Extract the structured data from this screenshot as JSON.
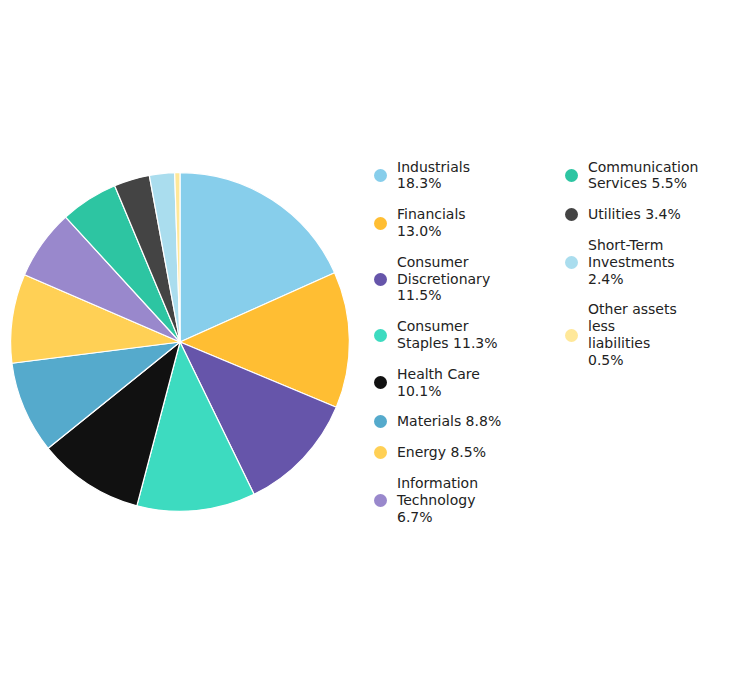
{
  "chart_data": {
    "type": "pie",
    "categories": [
      "Industrials\n18.3%",
      "Financials\n13.0%",
      "Consumer\nDiscretionary\n11.5%",
      "Consumer\nStaples 11.3%",
      "Health Care\n10.1%",
      "Materials 8.8%",
      "Energy 8.5%",
      "Information\nTechnology\n6.7%",
      "Communication\nServices 5.5%",
      "Utilities 3.4%",
      "Short-Term\nInvestments\n2.4%",
      "Other assets\nless\nliabilities\n0.5%"
    ],
    "values": [
      18.3,
      13.0,
      11.5,
      11.3,
      10.1,
      8.8,
      8.5,
      6.7,
      5.5,
      3.4,
      2.4,
      0.5
    ],
    "colors": [
      "#87CEEB",
      "#FFBE33",
      "#6655AA",
      "#3DDBC0",
      "#111111",
      "#55AACC",
      "#FFD055",
      "#9988CC",
      "#2DC5A2",
      "#444444",
      "#AADDEE",
      "#FFE899"
    ],
    "legend": "right"
  }
}
